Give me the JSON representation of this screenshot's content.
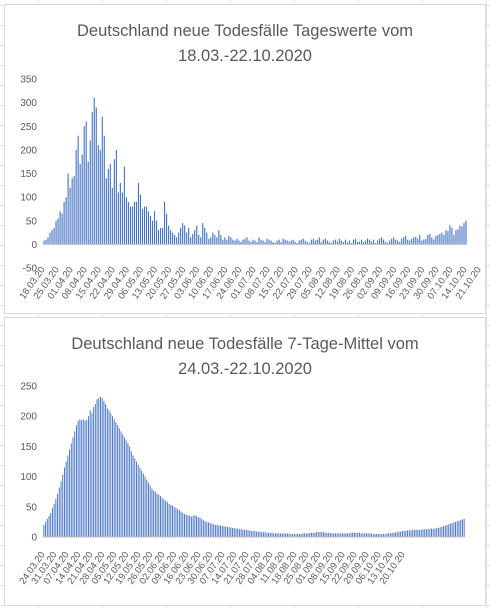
{
  "colors": {
    "bar": "#4472c4",
    "axis": "#bfbfbf",
    "text": "#595959",
    "background": "#ffffff",
    "gridlines": "#e4e4e4"
  },
  "chart_data": [
    {
      "type": "bar",
      "title_lines": [
        "Deutschland neue Todesfälle Tageswerte vom",
        "18.03.-22.10.2020"
      ],
      "xlabel": "",
      "ylabel": "",
      "ylim": [
        -50,
        350
      ],
      "yticks": [
        "350",
        "300",
        "250",
        "200",
        "150",
        "100",
        "50",
        "0",
        "-50"
      ],
      "x_tick_labels": [
        "18.03.20",
        "25.03.20",
        "01.04.20",
        "08.04.20",
        "15.04.20",
        "22.04.20",
        "29.04.20",
        "06.05.20",
        "13.05.20",
        "20.05.20",
        "27.05.20",
        "03.06.20",
        "10.06.20",
        "17.06.20",
        "24.06.20",
        "01.07.20",
        "08.07.20",
        "15.07.20",
        "22.07.20",
        "29.07.20",
        "05.08.20",
        "12.08.20",
        "19.08.20",
        "26.08.20",
        "02.09.20",
        "09.09.20",
        "16.09.20",
        "23.09.20",
        "30.09.20",
        "07.10.20",
        "14.10.20",
        "21.10.20"
      ],
      "x_start": "18.03.20",
      "legend": "none",
      "values": [
        8,
        10,
        15,
        25,
        30,
        35,
        50,
        55,
        70,
        65,
        90,
        100,
        150,
        120,
        140,
        145,
        200,
        230,
        170,
        190,
        250,
        260,
        175,
        220,
        280,
        310,
        290,
        210,
        200,
        270,
        230,
        140,
        160,
        170,
        120,
        180,
        200,
        110,
        130,
        110,
        165,
        100,
        90,
        80,
        80,
        90,
        90,
        130,
        105,
        75,
        80,
        80,
        70,
        60,
        50,
        70,
        50,
        30,
        35,
        35,
        90,
        65,
        40,
        30,
        25,
        20,
        15,
        25,
        35,
        45,
        40,
        25,
        35,
        15,
        22,
        30,
        40,
        20,
        15,
        45,
        35,
        25,
        12,
        15,
        25,
        20,
        15,
        30,
        20,
        10,
        15,
        10,
        18,
        15,
        10,
        8,
        12,
        8,
        5,
        10,
        12,
        15,
        8,
        5,
        10,
        8,
        5,
        15,
        10,
        8,
        5,
        12,
        10,
        8,
        5,
        3,
        8,
        10,
        5,
        12,
        10,
        8,
        6,
        8,
        10,
        5,
        3,
        8,
        10,
        12,
        8,
        5,
        3,
        10,
        12,
        8,
        10,
        15,
        5,
        10,
        12,
        8,
        5,
        3,
        8,
        10,
        6,
        12,
        8,
        5,
        10,
        4,
        8,
        3,
        10,
        12,
        5,
        6,
        10,
        5,
        8,
        12,
        10,
        6,
        10,
        3,
        8,
        12,
        15,
        10,
        5,
        3,
        8,
        12,
        15,
        10,
        8,
        5,
        12,
        15,
        18,
        10,
        8,
        12,
        15,
        16,
        12,
        20,
        8,
        10,
        12,
        20,
        22,
        15,
        10,
        18,
        20,
        22,
        25,
        20,
        30,
        28,
        40,
        35,
        20,
        30,
        32,
        40,
        38,
        45,
        50
      ]
    },
    {
      "type": "bar",
      "title_lines": [
        "Deutschland neue Todesfälle 7-Tage-Mittel vom",
        "24.03.-22.10.2020"
      ],
      "xlabel": "",
      "ylabel": "",
      "ylim": [
        0,
        250
      ],
      "yticks": [
        "250",
        "200",
        "150",
        "100",
        "50",
        "0"
      ],
      "x_tick_labels": [
        "24.03.20",
        "31.03.20",
        "07.04.20",
        "14.04.20",
        "21.04.20",
        "28.04.20",
        "05.05.20",
        "12.05.20",
        "19.05.20",
        "26.05.20",
        "02.06.20",
        "09.06.20",
        "16.06.20",
        "23.06.20",
        "30.06.20",
        "07.07.20",
        "14.07.20",
        "21.07.20",
        "28.07.20",
        "04.08.20",
        "11.08.20",
        "18.08.20",
        "25.08.20",
        "01.09.20",
        "08.09.20",
        "15.09.20",
        "22.09.20",
        "29.09.20",
        "06.10.20",
        "13.10.20",
        "20.10.20"
      ],
      "x_start": "24.03.20",
      "legend": "none",
      "values": [
        20,
        25,
        30,
        35,
        40,
        48,
        55,
        63,
        72,
        82,
        92,
        103,
        115,
        125,
        135,
        145,
        155,
        165,
        175,
        185,
        192,
        195,
        193,
        195,
        192,
        194,
        200,
        210,
        205,
        215,
        220,
        228,
        230,
        232,
        230,
        225,
        220,
        213,
        210,
        205,
        200,
        195,
        190,
        185,
        180,
        175,
        170,
        165,
        160,
        155,
        150,
        142,
        135,
        130,
        125,
        120,
        115,
        110,
        105,
        100,
        95,
        90,
        85,
        80,
        77,
        75,
        72,
        70,
        68,
        65,
        62,
        60,
        58,
        55,
        53,
        52,
        50,
        48,
        46,
        45,
        42,
        40,
        38,
        37,
        36,
        35,
        34,
        35,
        36,
        35,
        33,
        32,
        30,
        28,
        26,
        25,
        24,
        23,
        22,
        21,
        20,
        20,
        19,
        19,
        18,
        18,
        17,
        17,
        16,
        16,
        15,
        15,
        14,
        14,
        13,
        13,
        12,
        12,
        12,
        11,
        11,
        10,
        10,
        10,
        9,
        9,
        9,
        8,
        8,
        8,
        7,
        7,
        7,
        7,
        6,
        6,
        6,
        6,
        6,
        6,
        6,
        6,
        6,
        6,
        5,
        5,
        5,
        5,
        5,
        5,
        5,
        6,
        6,
        6,
        6,
        7,
        7,
        7,
        7,
        8,
        8,
        8,
        8,
        8,
        7,
        7,
        7,
        7,
        6,
        6,
        6,
        6,
        6,
        6,
        6,
        6,
        6,
        6,
        6,
        7,
        7,
        7,
        7,
        7,
        7,
        6,
        6,
        6,
        6,
        6,
        6,
        6,
        5,
        5,
        5,
        5,
        5,
        5,
        5,
        5,
        6,
        6,
        6,
        7,
        7,
        8,
        8,
        9,
        9,
        10,
        10,
        10,
        11,
        11,
        11,
        12,
        12,
        12,
        12,
        12,
        12,
        13,
        13,
        13,
        13,
        13,
        14,
        14,
        14,
        15,
        15,
        16,
        17,
        18,
        19,
        20,
        21,
        22,
        23,
        24,
        25,
        26,
        27,
        28,
        29,
        30
      ]
    }
  ]
}
